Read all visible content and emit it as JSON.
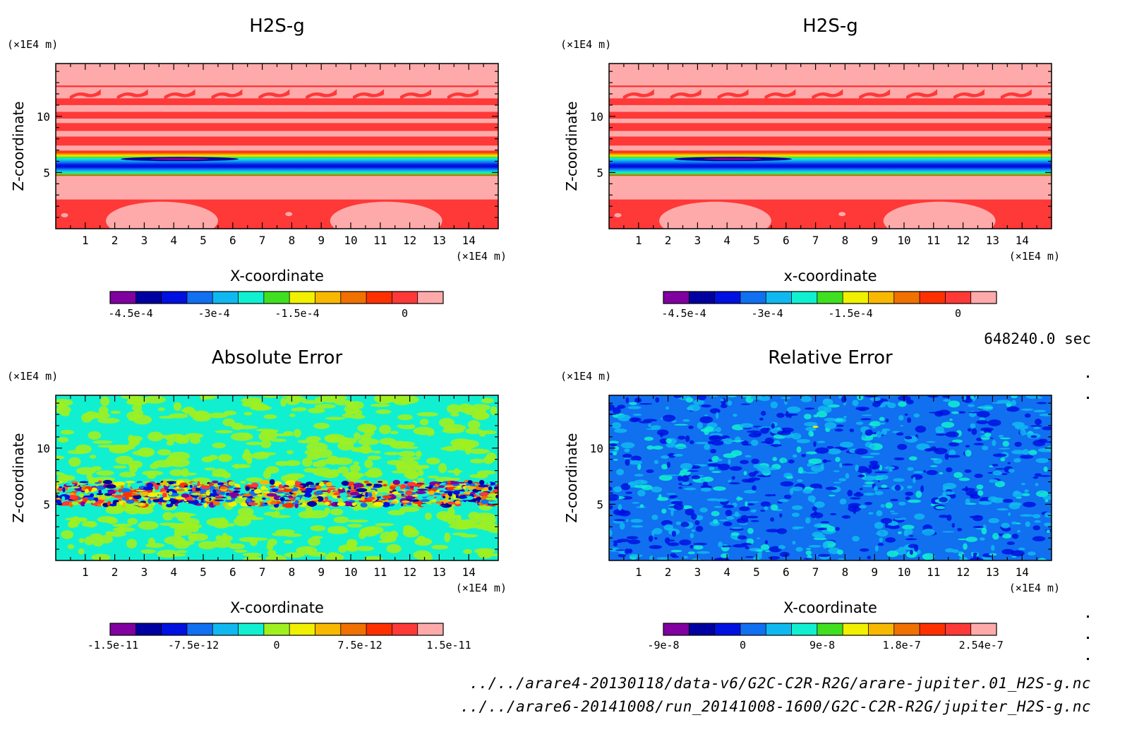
{
  "chart_data": [
    {
      "type": "heatmap",
      "title": "H2S-g",
      "xlabel": "X-coordinate",
      "ylabel": "Z-coordinate",
      "x_unit": "(×1E4 m)",
      "y_unit": "(×1E4 m)",
      "xlim": [
        0,
        15
      ],
      "ylim": [
        0,
        14.7
      ],
      "xticks": [
        1,
        2,
        3,
        4,
        5,
        6,
        7,
        8,
        9,
        10,
        11,
        12,
        13,
        14
      ],
      "yticks": [
        5,
        10
      ],
      "colorbar": {
        "colors": [
          "#8000a0",
          "#0000a0",
          "#0010e0",
          "#1070f0",
          "#10b8f0",
          "#10f0d0",
          "#40e020",
          "#f0f000",
          "#f8b800",
          "#f07000",
          "#ff3000",
          "#ff3838",
          "#ffaaaa"
        ],
        "tick_labels": [
          "-4.5e-4",
          "-3e-4",
          "-1.5e-4",
          "0"
        ]
      }
    },
    {
      "type": "heatmap",
      "title": "H2S-g",
      "xlabel": "x-coordinate",
      "ylabel": "Z-coordinate",
      "x_unit": "(×1E4 m)",
      "y_unit": "(×1E4 m)",
      "xlim": [
        0,
        15
      ],
      "ylim": [
        0,
        14.7
      ],
      "xticks": [
        1,
        2,
        3,
        4,
        5,
        6,
        7,
        8,
        9,
        10,
        11,
        12,
        13,
        14
      ],
      "yticks": [
        5,
        10
      ],
      "colorbar": {
        "colors": [
          "#8000a0",
          "#0000a0",
          "#0010e0",
          "#1070f0",
          "#10b8f0",
          "#10f0d0",
          "#40e020",
          "#f0f000",
          "#f8b800",
          "#f07000",
          "#ff3000",
          "#ff3838",
          "#ffaaaa"
        ],
        "tick_labels": [
          "-4.5e-4",
          "-3e-4",
          "-1.5e-4",
          "0"
        ]
      }
    },
    {
      "type": "heatmap",
      "title": "Absolute Error",
      "xlabel": "X-coordinate",
      "ylabel": "Z-coordinate",
      "x_unit": "(×1E4 m)",
      "y_unit": "(×1E4 m)",
      "xlim": [
        0,
        15
      ],
      "ylim": [
        0,
        14.7
      ],
      "xticks": [
        1,
        2,
        3,
        4,
        5,
        6,
        7,
        8,
        9,
        10,
        11,
        12,
        13,
        14
      ],
      "yticks": [
        5,
        10
      ],
      "colorbar": {
        "colors": [
          "#8000a0",
          "#0000a0",
          "#0010e0",
          "#1070f0",
          "#10b8f0",
          "#10f0d0",
          "#a0f020",
          "#f0f000",
          "#f8b800",
          "#f07000",
          "#ff3000",
          "#ff3838",
          "#ffaaaa"
        ],
        "tick_labels": [
          "-1.5e-11",
          "-7.5e-12",
          "0",
          "7.5e-12",
          "1.5e-11"
        ]
      }
    },
    {
      "type": "heatmap",
      "title": "Relative Error",
      "xlabel": "X-coordinate",
      "ylabel": "Z-coordinate",
      "x_unit": "(×1E4 m)",
      "y_unit": "(×1E4 m)",
      "xlim": [
        0,
        15
      ],
      "ylim": [
        0,
        14.7
      ],
      "xticks": [
        1,
        2,
        3,
        4,
        5,
        6,
        7,
        8,
        9,
        10,
        11,
        12,
        13,
        14
      ],
      "yticks": [
        5,
        10
      ],
      "colorbar": {
        "colors": [
          "#8000a0",
          "#0000a0",
          "#0010e0",
          "#1070f0",
          "#10b8f0",
          "#10f0d0",
          "#40e020",
          "#f0f000",
          "#f8b800",
          "#f07000",
          "#ff3000",
          "#ff3838",
          "#ffaaaa"
        ],
        "tick_labels": [
          "-9e-8",
          "0",
          "9e-8",
          "1.8e-7",
          "2.54e-7"
        ]
      }
    }
  ],
  "time_label": "648240.0 sec",
  "file_paths": [
    "../../arare4-20130118/data-v6/G2C-C2R-R2G/arare-jupiter.01_H2S-g.nc",
    "../../arare6-20141008/run_20141008-1600/G2C-C2R-R2G/jupiter_H2S-g.nc"
  ]
}
